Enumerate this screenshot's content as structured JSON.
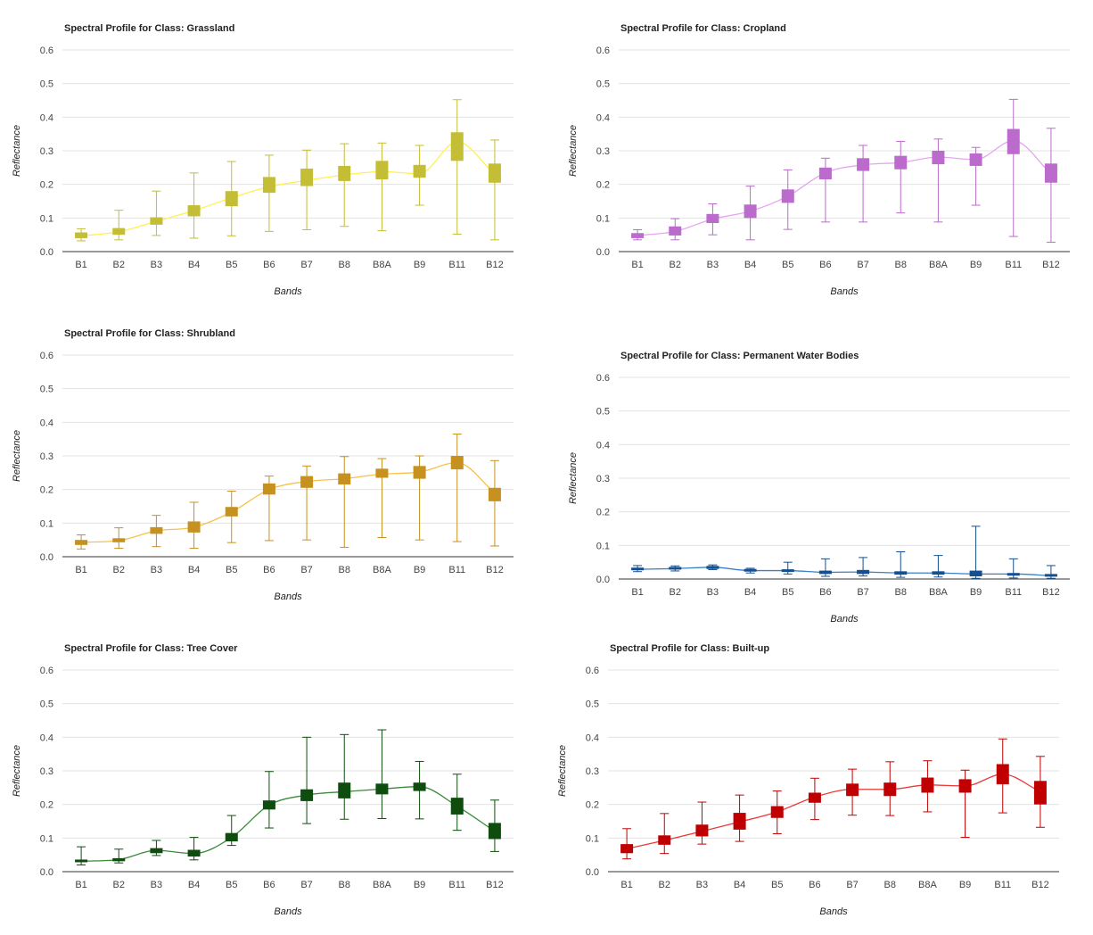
{
  "chart_data": [
    {
      "type": "candlestick",
      "title": "Spectral Profile for Class: Grassland",
      "xlabel": "Bands",
      "ylabel": "Reflectance",
      "ylim": [
        0,
        0.6
      ],
      "yticks": [
        "0.0",
        "0.1",
        "0.2",
        "0.3",
        "0.4",
        "0.5",
        "0.6"
      ],
      "categories": [
        "B1",
        "B2",
        "B3",
        "B4",
        "B5",
        "B6",
        "B7",
        "B8",
        "B8A",
        "B9",
        "B11",
        "B12"
      ],
      "color": "#c4bd36",
      "line_color": "#fff14d",
      "mean": [
        0.047,
        0.059,
        0.09,
        0.122,
        0.16,
        0.193,
        0.212,
        0.228,
        0.238,
        0.232,
        0.327,
        0.23
      ],
      "q1": [
        0.04,
        0.05,
        0.08,
        0.105,
        0.135,
        0.175,
        0.195,
        0.21,
        0.215,
        0.22,
        0.27,
        0.205
      ],
      "q3": [
        0.057,
        0.07,
        0.102,
        0.138,
        0.18,
        0.222,
        0.247,
        0.255,
        0.27,
        0.258,
        0.355,
        0.262
      ],
      "min": [
        0.032,
        0.035,
        0.048,
        0.04,
        0.047,
        0.06,
        0.065,
        0.075,
        0.062,
        0.138,
        0.052,
        0.035
      ],
      "max": [
        0.068,
        0.123,
        0.18,
        0.234,
        0.268,
        0.287,
        0.302,
        0.321,
        0.323,
        0.316,
        0.452,
        0.332
      ]
    },
    {
      "type": "candlestick",
      "title": "Spectral Profile for Class: Cropland",
      "xlabel": "Bands",
      "ylabel": "Reflectance",
      "ylim": [
        0,
        0.6
      ],
      "yticks": [
        "0.0",
        "0.1",
        "0.2",
        "0.3",
        "0.4",
        "0.5",
        "0.6"
      ],
      "categories": [
        "B1",
        "B2",
        "B3",
        "B4",
        "B5",
        "B6",
        "B7",
        "B8",
        "B8A",
        "B9",
        "B11",
        "B12"
      ],
      "color": "#bb6bcb",
      "line_color": "#e6a5ef",
      "mean": [
        0.048,
        0.06,
        0.097,
        0.12,
        0.165,
        0.235,
        0.258,
        0.265,
        0.281,
        0.274,
        0.33,
        0.232
      ],
      "q1": [
        0.04,
        0.048,
        0.085,
        0.1,
        0.145,
        0.215,
        0.24,
        0.245,
        0.26,
        0.255,
        0.29,
        0.205
      ],
      "q3": [
        0.055,
        0.075,
        0.112,
        0.14,
        0.185,
        0.25,
        0.278,
        0.285,
        0.3,
        0.292,
        0.365,
        0.262
      ],
      "min": [
        0.035,
        0.035,
        0.05,
        0.035,
        0.066,
        0.088,
        0.088,
        0.115,
        0.088,
        0.138,
        0.045,
        0.028
      ],
      "max": [
        0.065,
        0.098,
        0.142,
        0.195,
        0.243,
        0.278,
        0.316,
        0.328,
        0.335,
        0.31,
        0.453,
        0.367
      ]
    },
    {
      "type": "candlestick",
      "title": "Spectral Profile for Class: Shrubland",
      "xlabel": "Bands",
      "ylabel": "Reflectance",
      "ylim": [
        0,
        0.6
      ],
      "yticks": [
        "0.0",
        "0.1",
        "0.2",
        "0.3",
        "0.4",
        "0.5",
        "0.6"
      ],
      "categories": [
        "B1",
        "B2",
        "B3",
        "B4",
        "B5",
        "B6",
        "B7",
        "B8",
        "B8A",
        "B9",
        "B11",
        "B12"
      ],
      "color": "#c6911f",
      "line_color": "#f5c24a",
      "mean": [
        0.043,
        0.048,
        0.077,
        0.088,
        0.133,
        0.2,
        0.224,
        0.232,
        0.246,
        0.252,
        0.28,
        0.19
      ],
      "q1": [
        0.035,
        0.043,
        0.068,
        0.072,
        0.12,
        0.185,
        0.205,
        0.215,
        0.235,
        0.232,
        0.26,
        0.165
      ],
      "q3": [
        0.05,
        0.055,
        0.088,
        0.105,
        0.148,
        0.218,
        0.24,
        0.248,
        0.262,
        0.27,
        0.3,
        0.205
      ],
      "min": [
        0.023,
        0.025,
        0.03,
        0.025,
        0.042,
        0.048,
        0.05,
        0.028,
        0.057,
        0.05,
        0.045,
        0.032
      ],
      "max": [
        0.065,
        0.086,
        0.123,
        0.162,
        0.195,
        0.24,
        0.27,
        0.298,
        0.292,
        0.3,
        0.365,
        0.286
      ]
    },
    {
      "type": "candlestick",
      "title": "Spectral Profile for Class: Permanent Water Bodies",
      "xlabel": "Bands",
      "ylabel": "Reflectance",
      "ylim": [
        0,
        0.6
      ],
      "yticks": [
        "0.0",
        "0.1",
        "0.2",
        "0.3",
        "0.4",
        "0.5",
        "0.6"
      ],
      "categories": [
        "B1",
        "B2",
        "B3",
        "B4",
        "B5",
        "B6",
        "B7",
        "B8",
        "B8A",
        "B9",
        "B11",
        "B12"
      ],
      "color": "#154f8f",
      "line_color": "#3b7fc4",
      "mean": [
        0.029,
        0.031,
        0.035,
        0.025,
        0.025,
        0.02,
        0.021,
        0.018,
        0.018,
        0.015,
        0.015,
        0.01
      ],
      "q1": [
        0.026,
        0.028,
        0.03,
        0.022,
        0.021,
        0.015,
        0.015,
        0.013,
        0.013,
        0.008,
        0.01,
        0.007
      ],
      "q3": [
        0.032,
        0.035,
        0.039,
        0.028,
        0.029,
        0.025,
        0.027,
        0.023,
        0.023,
        0.025,
        0.018,
        0.013
      ],
      "min": [
        0.022,
        0.024,
        0.028,
        0.018,
        0.015,
        0.008,
        0.009,
        0.005,
        0.006,
        0.002,
        0.003,
        0.002
      ],
      "max": [
        0.04,
        0.039,
        0.042,
        0.032,
        0.05,
        0.06,
        0.064,
        0.081,
        0.07,
        0.157,
        0.06,
        0.04
      ]
    },
    {
      "type": "candlestick",
      "title": "Spectral Profile for Class: Tree Cover",
      "xlabel": "Bands",
      "ylabel": "Reflectance",
      "ylim": [
        0,
        0.6
      ],
      "yticks": [
        "0.0",
        "0.1",
        "0.2",
        "0.3",
        "0.4",
        "0.5",
        "0.6"
      ],
      "categories": [
        "B1",
        "B2",
        "B3",
        "B4",
        "B5",
        "B6",
        "B7",
        "B8",
        "B8A",
        "B9",
        "B11",
        "B12"
      ],
      "color": "#0f4d0f",
      "line_color": "#3a8a3a",
      "mean": [
        0.031,
        0.036,
        0.063,
        0.054,
        0.102,
        0.198,
        0.228,
        0.238,
        0.246,
        0.253,
        0.195,
        0.12
      ],
      "q1": [
        0.028,
        0.031,
        0.055,
        0.045,
        0.09,
        0.185,
        0.21,
        0.218,
        0.23,
        0.24,
        0.17,
        0.097
      ],
      "q3": [
        0.036,
        0.04,
        0.07,
        0.065,
        0.115,
        0.212,
        0.245,
        0.265,
        0.262,
        0.265,
        0.22,
        0.145
      ],
      "min": [
        0.02,
        0.026,
        0.048,
        0.035,
        0.078,
        0.13,
        0.143,
        0.156,
        0.158,
        0.157,
        0.123,
        0.06
      ],
      "max": [
        0.074,
        0.067,
        0.093,
        0.102,
        0.167,
        0.298,
        0.4,
        0.408,
        0.422,
        0.328,
        0.29,
        0.213
      ]
    },
    {
      "type": "candlestick",
      "title": "Spectral Profile for Class: Built-up",
      "xlabel": "Bands",
      "ylabel": "Reflectance",
      "ylim": [
        0,
        0.6
      ],
      "yticks": [
        "0.0",
        "0.1",
        "0.2",
        "0.3",
        "0.4",
        "0.5",
        "0.6"
      ],
      "categories": [
        "B1",
        "B2",
        "B3",
        "B4",
        "B5",
        "B6",
        "B7",
        "B8",
        "B8A",
        "B9",
        "B11",
        "B12"
      ],
      "color": "#c00000",
      "line_color": "#e83a3a",
      "mean": [
        0.068,
        0.093,
        0.12,
        0.148,
        0.178,
        0.222,
        0.245,
        0.245,
        0.258,
        0.255,
        0.29,
        0.238
      ],
      "q1": [
        0.055,
        0.08,
        0.105,
        0.125,
        0.16,
        0.205,
        0.225,
        0.225,
        0.235,
        0.235,
        0.26,
        0.2
      ],
      "q3": [
        0.082,
        0.108,
        0.14,
        0.175,
        0.195,
        0.235,
        0.262,
        0.265,
        0.28,
        0.275,
        0.32,
        0.27
      ],
      "min": [
        0.038,
        0.054,
        0.082,
        0.09,
        0.113,
        0.155,
        0.168,
        0.167,
        0.178,
        0.102,
        0.175,
        0.132
      ],
      "max": [
        0.128,
        0.173,
        0.207,
        0.228,
        0.24,
        0.278,
        0.305,
        0.327,
        0.33,
        0.302,
        0.395,
        0.343
      ]
    }
  ]
}
